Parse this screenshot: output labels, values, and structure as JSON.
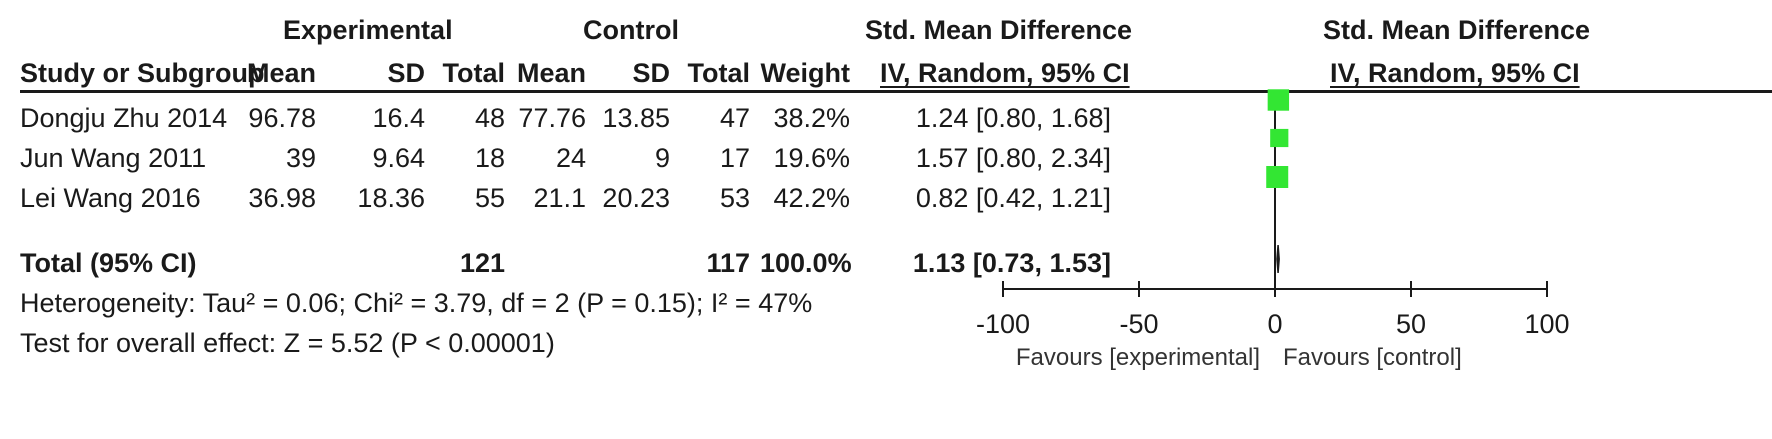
{
  "headers": {
    "experimental": "Experimental",
    "control": "Control",
    "smd_title": "Std. Mean Difference",
    "smd_method": "IV, Random, 95% CI",
    "plot_title": "Std. Mean Difference",
    "plot_method": "IV, Random, 95% CI",
    "study": "Study or Subgroup",
    "mean_e": "Mean",
    "sd_e": "SD",
    "total_e": "Total",
    "mean_c": "Mean",
    "sd_c": "SD",
    "total_c": "Total",
    "weight": "Weight"
  },
  "studies": [
    {
      "name": "Dongju Zhu 2014",
      "mean_e": "96.78",
      "sd_e": "16.4",
      "total_e": "48",
      "mean_c": "77.76",
      "sd_c": "13.85",
      "total_c": "47",
      "weight": "38.2%",
      "ci": "1.24 [0.80, 1.68]"
    },
    {
      "name": "Jun Wang 2011",
      "mean_e": "39",
      "sd_e": "9.64",
      "total_e": "18",
      "mean_c": "24",
      "sd_c": "9",
      "total_c": "17",
      "weight": "19.6%",
      "ci": "1.57 [0.80, 2.34]"
    },
    {
      "name": "Lei Wang 2016",
      "mean_e": "36.98",
      "sd_e": "18.36",
      "total_e": "55",
      "mean_c": "21.1",
      "sd_c": "20.23",
      "total_c": "53",
      "weight": "42.2%",
      "ci": "0.82 [0.42, 1.21]"
    }
  ],
  "total": {
    "label": "Total (95% CI)",
    "total_e": "121",
    "total_c": "117",
    "weight": "100.0%",
    "ci": "1.13 [0.73, 1.53]"
  },
  "heterogeneity": "Heterogeneity: Tau² = 0.06; Chi² = 3.79, df = 2 (P = 0.15); I² = 47%",
  "overall_effect": "Test for overall effect: Z = 5.52 (P < 0.00001)",
  "favours_left": "Favours [experimental]",
  "favours_right": "Favours [control]",
  "colors": {
    "marker": "#33e633",
    "line": "#1a1a1a"
  },
  "chart_data": {
    "type": "scatter",
    "x_range": [
      -100,
      100
    ],
    "x_ticks": [
      "-100",
      "-50",
      "0",
      "50",
      "100"
    ],
    "x_tick_values": [
      -100,
      -50,
      0,
      50,
      100
    ],
    "studies": [
      {
        "name": "Dongju Zhu 2014",
        "estimate": 1.24,
        "lower": 0.8,
        "upper": 1.68,
        "weight": 38.2
      },
      {
        "name": "Jun Wang 2011",
        "estimate": 1.57,
        "lower": 0.8,
        "upper": 2.34,
        "weight": 19.6
      },
      {
        "name": "Lei Wang 2016",
        "estimate": 0.82,
        "lower": 0.42,
        "upper": 1.21,
        "weight": 42.2
      }
    ],
    "pooled": {
      "estimate": 1.13,
      "lower": 0.73,
      "upper": 1.53
    }
  }
}
